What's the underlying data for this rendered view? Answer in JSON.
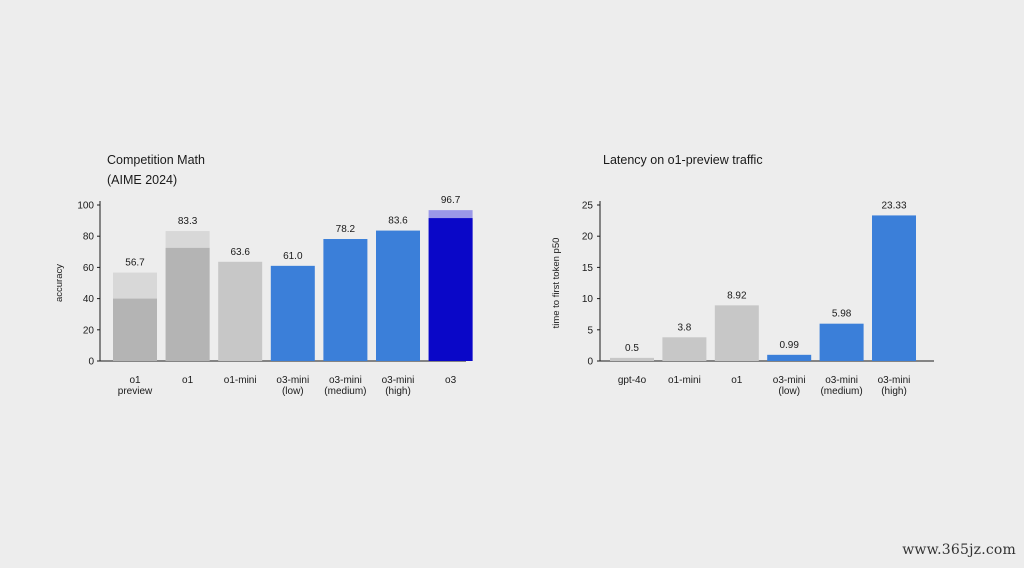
{
  "watermark": "www.365jz.com",
  "colors": {
    "background": "#ededed",
    "gray_bar": "#c7c7c7",
    "gray_bar_overlay": "#b4b4b4",
    "gray_bar_light": "#d8d8d8",
    "blue_bar": "#3b7fd9",
    "dark_blue_bar": "#0a07c8",
    "dark_blue_bar_light": "#9a98e8",
    "axis": "#1a1a1a"
  },
  "chart_data": [
    {
      "type": "bar",
      "title": [
        "Competition Math",
        "(AIME 2024)"
      ],
      "xlabel": "",
      "ylabel": "accuracy",
      "ylim": [
        0,
        100
      ],
      "yticks": [
        0,
        20,
        40,
        60,
        80,
        100
      ],
      "grid": false,
      "categories": [
        [
          "o1",
          "preview"
        ],
        [
          "o1"
        ],
        [
          "o1-mini"
        ],
        [
          "o3-mini",
          "(low)"
        ],
        [
          "o3-mini",
          "(medium)"
        ],
        [
          "o3-mini",
          "(high)"
        ],
        [
          "o3"
        ]
      ],
      "values": [
        56.7,
        83.3,
        63.6,
        61.0,
        78.2,
        83.6,
        96.7
      ],
      "data_labels": [
        "56.7",
        "83.3",
        "63.6",
        "61.0",
        "78.2",
        "83.6",
        "96.7"
      ],
      "inner_values": [
        40,
        72.5,
        null,
        null,
        null,
        null,
        91.6
      ],
      "bar_colors": [
        "gray",
        "gray",
        "gray",
        "blue",
        "blue",
        "blue",
        "dark_blue"
      ]
    },
    {
      "type": "bar",
      "title": [
        "Latency on o1-preview traffic"
      ],
      "xlabel": "",
      "ylabel": "time to first token p50",
      "ylim": [
        0,
        25
      ],
      "yticks": [
        0,
        5,
        10,
        15,
        20,
        25
      ],
      "grid": false,
      "categories": [
        [
          "gpt-4o"
        ],
        [
          "o1-mini"
        ],
        [
          "o1"
        ],
        [
          "o3-mini",
          "(low)"
        ],
        [
          "o3-mini",
          "(medium)"
        ],
        [
          "o3-mini",
          "(high)"
        ]
      ],
      "values": [
        0.5,
        3.8,
        8.92,
        0.99,
        5.98,
        23.33
      ],
      "data_labels": [
        "0.5",
        "3.8",
        "8.92",
        "0.99",
        "5.98",
        "23.33"
      ],
      "bar_colors": [
        "gray",
        "gray",
        "gray",
        "blue",
        "blue",
        "blue"
      ]
    }
  ]
}
